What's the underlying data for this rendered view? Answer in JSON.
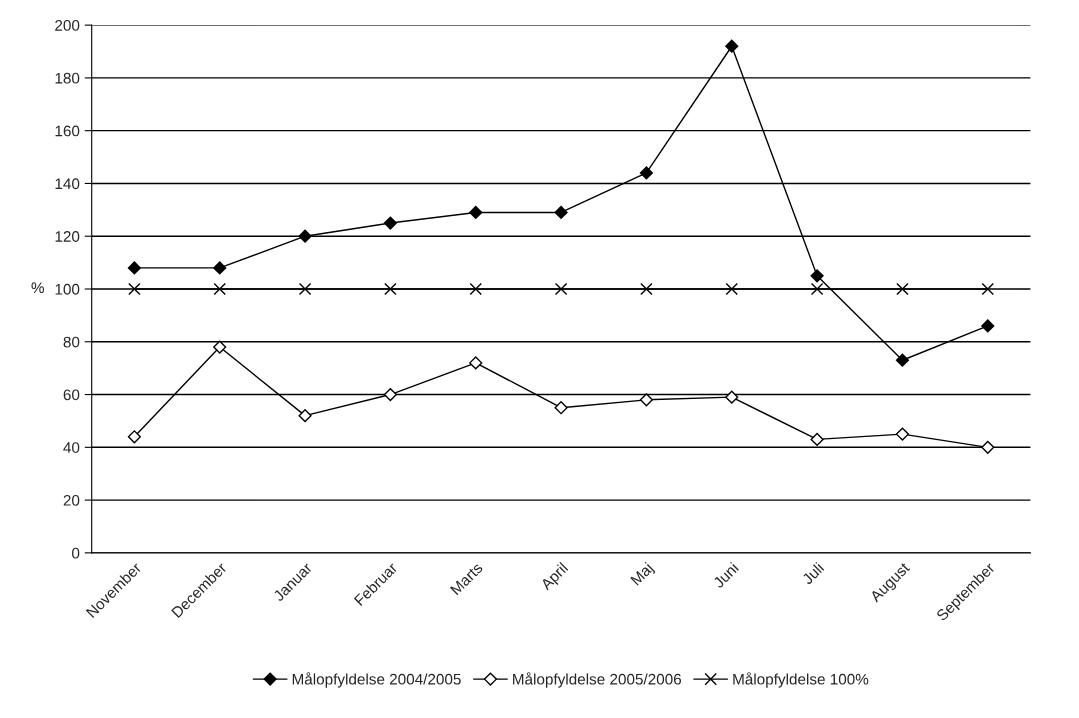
{
  "chart_data": {
    "type": "line",
    "ylabel": "%",
    "categories": [
      "November",
      "December",
      "Januar",
      "Februar",
      "Marts",
      "April",
      "Maj",
      "Juni",
      "Juli",
      "August",
      "September"
    ],
    "series": [
      {
        "name": "Målopfyldelse 2004/2005",
        "color": "#000000",
        "marker": "diamond",
        "values": [
          108,
          108,
          120,
          125,
          129,
          129,
          144,
          192,
          105,
          73,
          86
        ]
      },
      {
        "name": "Målopfyldelse 2005/2006",
        "color": "#000000",
        "marker": "diamond",
        "values": [
          44,
          78,
          52,
          60,
          72,
          55,
          58,
          59,
          43,
          45,
          40
        ]
      },
      {
        "name": "Målopfyldelse 100%",
        "color": "#000000",
        "marker": "cross",
        "values": [
          100,
          100,
          100,
          100,
          100,
          100,
          100,
          100,
          100,
          100,
          100
        ]
      }
    ],
    "ylim": [
      0,
      200
    ],
    "yticks": [
      0,
      20,
      40,
      60,
      80,
      100,
      120,
      140,
      160,
      180,
      200
    ],
    "grid": "y",
    "legend": "bottom",
    "line_style": "solid"
  }
}
